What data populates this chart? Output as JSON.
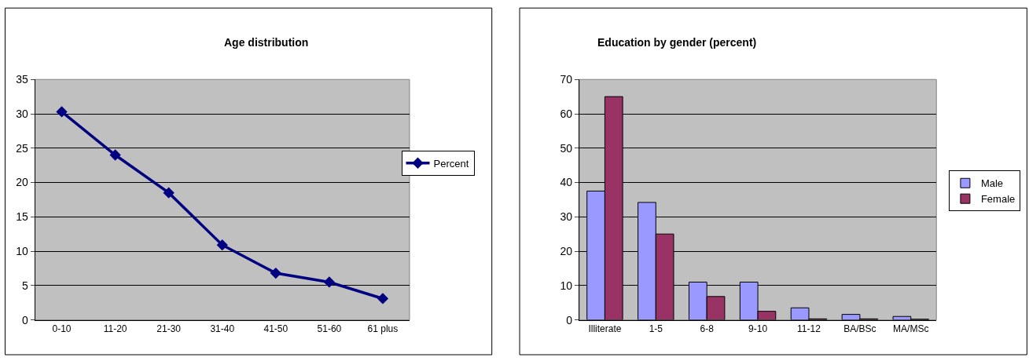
{
  "chart_data": [
    {
      "type": "line",
      "title": "Age distribution",
      "categories": [
        "0-10",
        "11-20",
        "21-30",
        "31-40",
        "41-50",
        "51-60",
        "61 plus"
      ],
      "series": [
        {
          "name": "Percent",
          "color": "#000080",
          "values": [
            30.3,
            24.0,
            18.5,
            10.9,
            6.8,
            5.5,
            3.1
          ]
        }
      ],
      "ylim": [
        0,
        35
      ],
      "yticks": [
        0,
        5,
        10,
        15,
        20,
        25,
        30,
        35
      ],
      "grid": "y",
      "legend": "right",
      "marker": "diamond",
      "line_style": "solid"
    },
    {
      "type": "bar",
      "title": "Education by gender (percent)",
      "categories": [
        "Illiterate",
        "1-5",
        "6-8",
        "9-10",
        "11-12",
        "BA/BSc",
        "MA/MSc"
      ],
      "series": [
        {
          "name": "Male",
          "color": "#9999ff",
          "values": [
            37.5,
            34.2,
            11,
            11,
            3.5,
            1.6,
            1
          ]
        },
        {
          "name": "Female",
          "color": "#993366",
          "values": [
            65,
            25,
            6.8,
            2.5,
            0.3,
            0.3,
            0.2
          ]
        }
      ],
      "ylim": [
        0,
        70
      ],
      "yticks": [
        0,
        10,
        20,
        30,
        40,
        50,
        60,
        70
      ],
      "grid": "y",
      "legend": "right"
    }
  ]
}
